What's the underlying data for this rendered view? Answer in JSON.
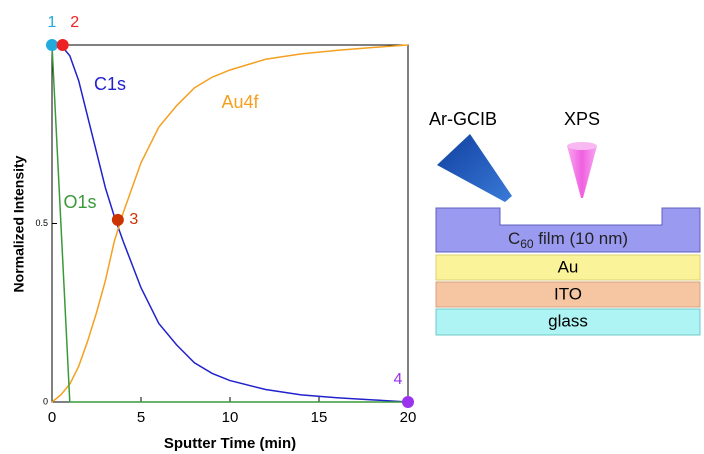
{
  "chart_data": {
    "type": "line",
    "xlabel": "Sputter Time (min)",
    "ylabel": "Normalized Intensity",
    "x": [
      0,
      0.5,
      1,
      1.5,
      2,
      2.5,
      3,
      3.5,
      4,
      5,
      6,
      7,
      8,
      9,
      10,
      12,
      14,
      16,
      18,
      20
    ],
    "series": [
      {
        "name": "C1s",
        "color": "#2222cc",
        "values": [
          1,
          1,
          0.97,
          0.9,
          0.8,
          0.7,
          0.6,
          0.52,
          0.45,
          0.32,
          0.22,
          0.16,
          0.11,
          0.08,
          0.06,
          0.035,
          0.02,
          0.012,
          0.006,
          0
        ]
      },
      {
        "name": "Au4f",
        "color": "#f5a020",
        "values": [
          0,
          0.02,
          0.05,
          0.1,
          0.17,
          0.25,
          0.34,
          0.45,
          0.53,
          0.67,
          0.77,
          0.83,
          0.88,
          0.91,
          0.93,
          0.96,
          0.975,
          0.985,
          0.993,
          1
        ]
      },
      {
        "name": "O1s",
        "color": "#3a9a3a",
        "values": [
          1,
          0.5,
          0,
          0,
          0,
          0,
          0,
          0,
          0,
          0,
          0,
          0,
          0,
          0,
          0,
          0,
          0,
          0,
          0,
          0
        ]
      }
    ],
    "markers": [
      {
        "label": "1",
        "x": 0,
        "y": 1,
        "color": "#22aadd"
      },
      {
        "label": "2",
        "x": 0.6,
        "y": 1,
        "color": "#ee2222"
      },
      {
        "label": "3",
        "x": 3.7,
        "y": 0.51,
        "color": "#cc3300"
      },
      {
        "label": "4",
        "x": 20,
        "y": 0,
        "color": "#9933ee"
      }
    ],
    "xlim": [
      0,
      20
    ],
    "ylim": [
      0,
      1
    ],
    "xticks": [
      0,
      5,
      10,
      15,
      20
    ],
    "yticks": [
      0,
      0.5
    ]
  },
  "diagram": {
    "beam_label": "Ar-GCIB",
    "probe_label": "XPS",
    "film_label": {
      "base": "C",
      "subscript": "60",
      "rest": " film (10 nm)"
    },
    "layers": [
      "Au",
      "ITO",
      "glass"
    ]
  }
}
